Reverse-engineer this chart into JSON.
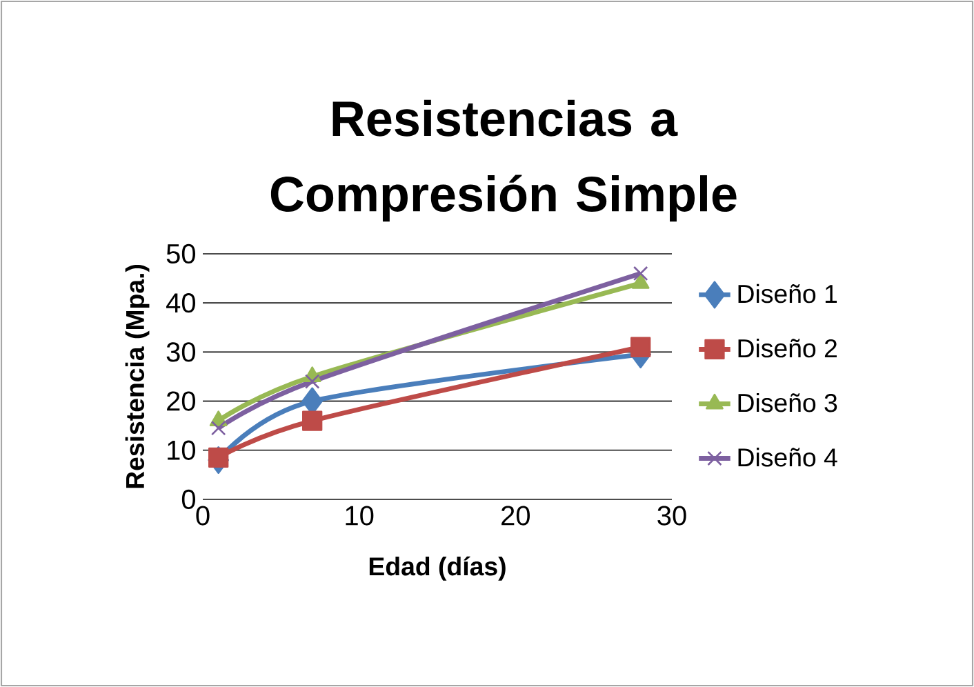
{
  "chart_data": {
    "type": "line",
    "title": "Resistencias a Compresión Simple",
    "xlabel": "Edad (días)",
    "ylabel": "Resistencia (Mpa.)",
    "x": [
      1,
      7,
      28
    ],
    "xlim": [
      0,
      30
    ],
    "xticks": [
      0,
      10,
      20,
      30
    ],
    "ylim": [
      0,
      50
    ],
    "yticks": [
      0,
      10,
      20,
      30,
      40,
      50
    ],
    "grid": "y",
    "legend": "right",
    "series": [
      {
        "name": "Diseño 1",
        "color": "#4a7ebb",
        "marker": "diamond",
        "values": [
          8,
          20,
          29.5
        ]
      },
      {
        "name": "Diseño 2",
        "color": "#be4b48",
        "marker": "square",
        "values": [
          8.5,
          16,
          31
        ]
      },
      {
        "name": "Diseño 3",
        "color": "#98b954",
        "marker": "triangle",
        "values": [
          16,
          25,
          44
        ]
      },
      {
        "name": "Diseño 4",
        "color": "#7d60a0",
        "marker": "cross",
        "values": [
          14.5,
          24,
          46
        ]
      }
    ]
  }
}
